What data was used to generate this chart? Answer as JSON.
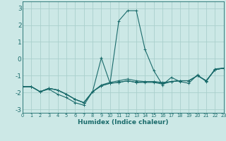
{
  "xlabel": "Humidex (Indice chaleur)",
  "xlim": [
    0,
    23
  ],
  "ylim": [
    -3.2,
    3.4
  ],
  "xticks": [
    0,
    1,
    2,
    3,
    4,
    5,
    6,
    7,
    8,
    9,
    10,
    11,
    12,
    13,
    14,
    15,
    16,
    17,
    18,
    19,
    20,
    21,
    22,
    23
  ],
  "yticks": [
    -3,
    -2,
    -1,
    0,
    1,
    2,
    3
  ],
  "bg_color": "#cce8e6",
  "grid_color": "#aacfcc",
  "line_color": "#1a6b6b",
  "series": [
    [
      -1.65,
      -1.65,
      -1.95,
      -1.8,
      -2.1,
      -2.3,
      -2.6,
      -2.75,
      -1.95,
      0.05,
      -1.45,
      2.25,
      2.85,
      2.85,
      0.55,
      -0.7,
      -1.55,
      -1.1,
      -1.35,
      -1.45,
      -0.95,
      -1.35,
      -0.6,
      -0.55
    ],
    [
      -1.65,
      -1.65,
      -1.95,
      -1.75,
      -1.85,
      -2.1,
      -2.4,
      -2.6,
      -1.95,
      -1.55,
      -1.4,
      -1.3,
      -1.2,
      -1.3,
      -1.35,
      -1.35,
      -1.4,
      -1.35,
      -1.3,
      -1.3,
      -1.0,
      -1.3,
      -0.65,
      -0.55
    ],
    [
      -1.65,
      -1.65,
      -1.95,
      -1.75,
      -1.85,
      -2.1,
      -2.4,
      -2.6,
      -1.95,
      -1.6,
      -1.45,
      -1.4,
      -1.3,
      -1.4,
      -1.35,
      -1.35,
      -1.45,
      -1.35,
      -1.3,
      -1.3,
      -1.0,
      -1.3,
      -0.65,
      -0.55
    ],
    [
      -1.65,
      -1.65,
      -1.95,
      -1.75,
      -1.85,
      -2.1,
      -2.4,
      -2.6,
      -1.95,
      -1.6,
      -1.45,
      -1.4,
      -1.3,
      -1.4,
      -1.4,
      -1.4,
      -1.5,
      -1.35,
      -1.3,
      -1.3,
      -1.0,
      -1.3,
      -0.65,
      -0.55
    ]
  ]
}
